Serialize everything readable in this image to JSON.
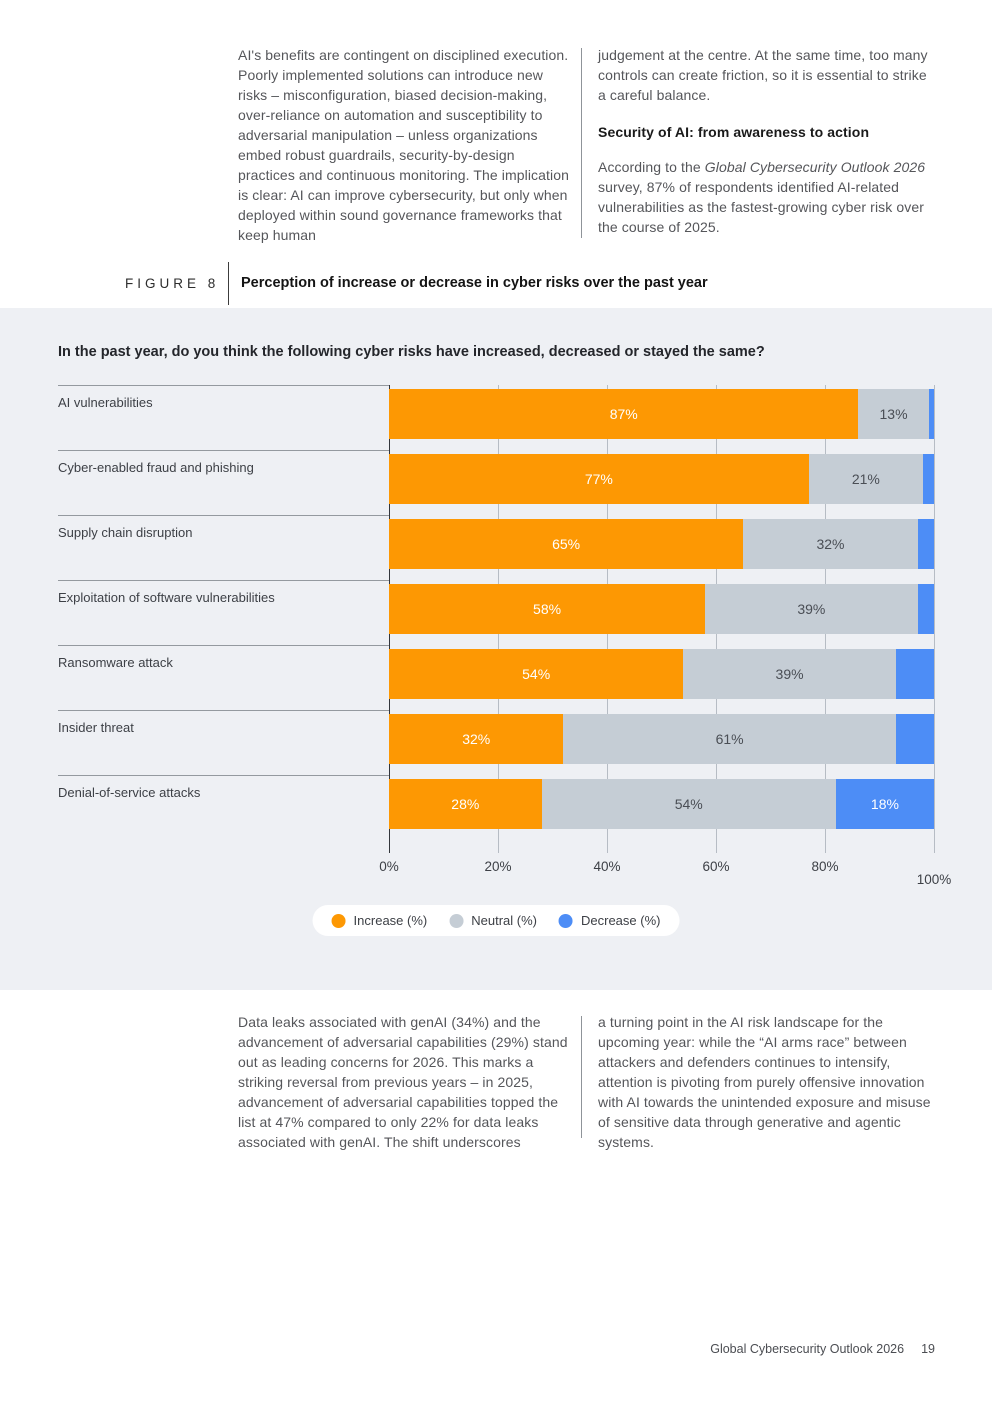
{
  "intro": {
    "left_paragraph": "AI's benefits are contingent on disciplined execution. Poorly implemented solutions can introduce new risks – misconfiguration, biased decision-making, over-reliance on automation and susceptibility to adversarial manipulation – unless organizations embed robust guardrails, security-by-design practices and continuous monitoring. The implication is clear: AI can improve cybersecurity, but only when deployed within sound governance frameworks that keep human",
    "right_paragraph_1": "judgement at the centre. At the same time, too many controls can create friction, so it is essential to strike a careful balance.",
    "heading": "Security of AI: from awareness to action",
    "right_paragraph_2_prefix": "According to the ",
    "right_paragraph_2_italic": "Global Cybersecurity Outlook 2026",
    "right_paragraph_2_suffix": " survey, 87% of respondents identified AI-related vulnerabilities as the fastest-growing cyber risk over the course of 2025."
  },
  "figure": {
    "label": "FIGURE 8",
    "title": "Perception of increase or decrease in cyber risks over the past year"
  },
  "chart_data": {
    "type": "bar",
    "orientation": "horizontal",
    "stacked": true,
    "title": "In the past year, do you think the following cyber risks have increased, decreased or stayed the same?",
    "categories": [
      "AI vulnerabilities",
      "Cyber-enabled fraud and phishing",
      "Supply chain disruption",
      "Exploitation of software vulnerabilities",
      "Ransomware attack",
      "Insider threat",
      "Denial-of-service attacks"
    ],
    "series": [
      {
        "name": "Increase (%)",
        "color": "#fd9803",
        "label_color": "#ffffff",
        "values": [
          87,
          77,
          65,
          58,
          54,
          32,
          28
        ]
      },
      {
        "name": "Neutral (%)",
        "color": "#c5cdd5",
        "label_color": "#4a4e55",
        "values": [
          13,
          21,
          32,
          39,
          39,
          61,
          54
        ]
      },
      {
        "name": "Decrease (%)",
        "color": "#4d8df6",
        "label_color": "#ffffff",
        "values": [
          1,
          2,
          3,
          3,
          7,
          7,
          18
        ]
      }
    ],
    "x_ticks": [
      "0%",
      "20%",
      "40%",
      "60%",
      "80%",
      "100%"
    ],
    "xlim": [
      0,
      100
    ],
    "grid": true,
    "legend_position": "bottom",
    "value_label_suffix": "%",
    "min_value_for_label": 10
  },
  "outro": {
    "left_paragraph": "Data leaks associated with genAI (34%) and the advancement of adversarial capabilities (29%) stand out as leading concerns for 2026. This marks a striking reversal from previous years – in 2025, advancement of adversarial capabilities topped the list at 47% compared to only 22% for data leaks associated with genAI. The shift underscores",
    "right_paragraph": "a turning point in the AI risk landscape for the upcoming year: while the “AI arms race” between attackers and defenders continues to intensify, attention is pivoting from purely offensive innovation with AI towards the unintended exposure and misuse of sensitive data through generative and agentic systems."
  },
  "footer": {
    "report_title": "Global Cybersecurity Outlook 2026",
    "page_number": "19"
  },
  "colors": {
    "increase": "#fd9803",
    "neutral": "#c5cdd5",
    "decrease": "#4d8df6",
    "chart_band_background": "#eef0f4",
    "axis_line": "#33363b",
    "gridline": "#b6bcc4"
  }
}
